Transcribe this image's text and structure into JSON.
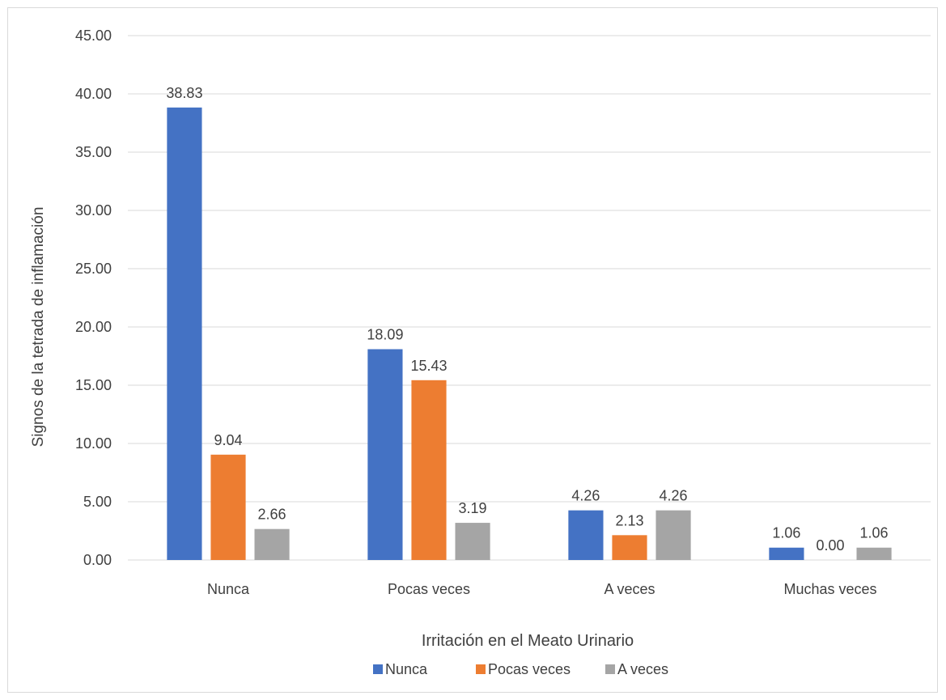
{
  "chart_data": {
    "type": "bar",
    "title": "",
    "xlabel": "Irritación en el Meato Urinario",
    "ylabel": "Signos de la tetrada de inflamación",
    "categories": [
      "Nunca",
      "Pocas veces",
      "A veces",
      "Muchas veces"
    ],
    "series": [
      {
        "name": "Nunca",
        "color": "#4472c4",
        "values": [
          38.83,
          18.09,
          4.26,
          1.06
        ]
      },
      {
        "name": "Pocas veces",
        "color": "#ed7d31",
        "values": [
          9.04,
          15.43,
          2.13,
          0.0
        ]
      },
      {
        "name": "A veces",
        "color": "#a5a5a5",
        "values": [
          2.66,
          3.19,
          4.26,
          1.06
        ]
      }
    ],
    "ylim": [
      0,
      45
    ],
    "yticks": [
      "0.00",
      "5.00",
      "10.00",
      "15.00",
      "20.00",
      "25.00",
      "30.00",
      "35.00",
      "40.00",
      "45.00"
    ],
    "data_labels": [
      [
        "38.83",
        "18.09",
        "4.26",
        "1.06"
      ],
      [
        "9.04",
        "15.43",
        "2.13",
        "0.00"
      ],
      [
        "2.66",
        "3.19",
        "4.26",
        "1.06"
      ]
    ],
    "grid": true,
    "legend_position": "bottom"
  }
}
